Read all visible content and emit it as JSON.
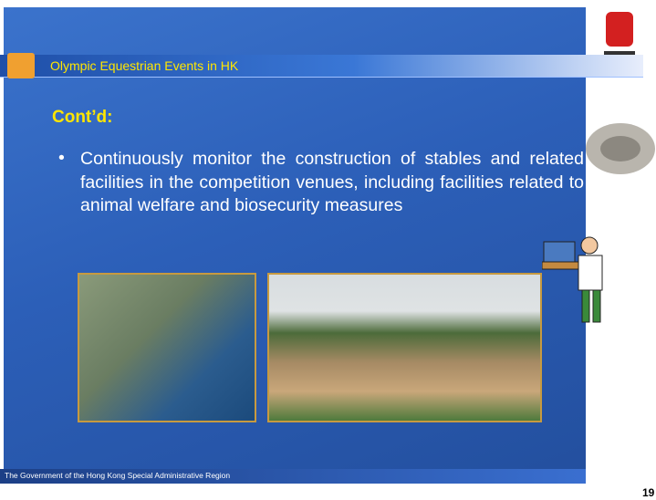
{
  "header": {
    "title": "Olympic Equestrian Events in HK"
  },
  "subtitle": "Cont’d:",
  "bullets": [
    "Continuously monitor the construction of stables and related facilities in the competition venues, including facilities related to animal welfare and biosecurity measures"
  ],
  "footer": "The Government of the Hong Kong Special Administrative Region",
  "page_number": "19"
}
